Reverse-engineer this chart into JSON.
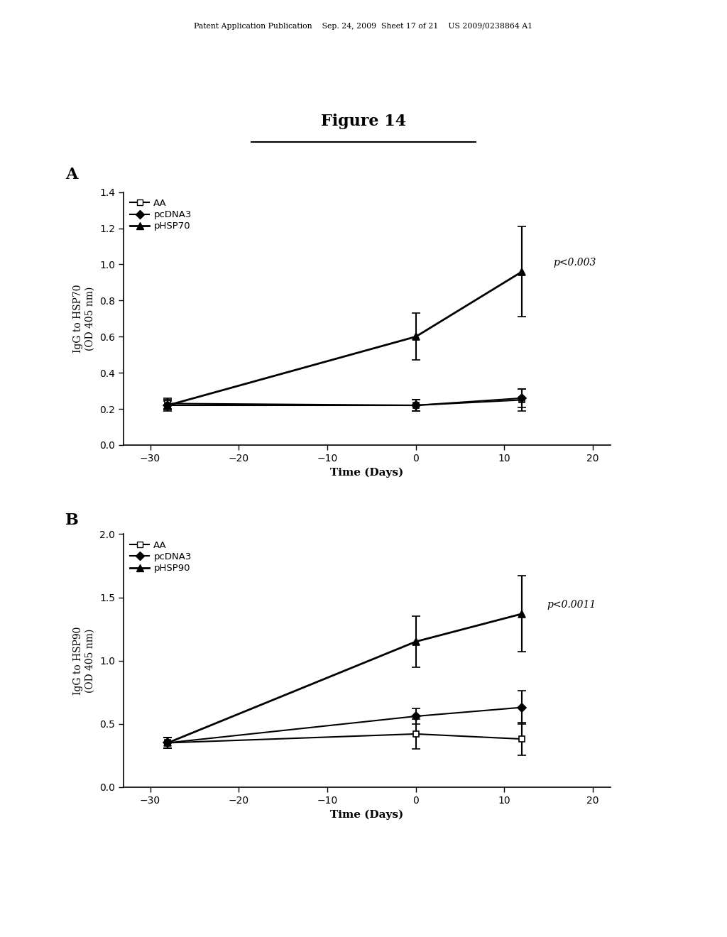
{
  "header_text": "Patent Application Publication    Sep. 24, 2009  Sheet 17 of 21    US 2009/0238864 A1",
  "figure_title": "Figure 14",
  "panel_A": {
    "panel_label": "A",
    "ylabel": "IgG to HSP70\n(OD 405 nm)",
    "xlabel": "Time (Days)",
    "xlim": [
      -33,
      22
    ],
    "ylim": [
      0,
      1.4
    ],
    "yticks": [
      0,
      0.2,
      0.4,
      0.6,
      0.8,
      1.0,
      1.2,
      1.4
    ],
    "xticks": [
      -30,
      -20,
      -10,
      0,
      10,
      20
    ],
    "pvalue": "p<0.003",
    "pvalue_x": 0.97,
    "pvalue_y": 0.72,
    "series": [
      {
        "label": "AA",
        "x": [
          -28,
          0,
          12
        ],
        "y": [
          0.23,
          0.22,
          0.25
        ],
        "yerr": [
          0.03,
          0.03,
          0.06
        ],
        "marker": "s",
        "fillstyle": "none",
        "linewidth": 1.5,
        "markersize": 6
      },
      {
        "label": "pcDNA3",
        "x": [
          -28,
          0,
          12
        ],
        "y": [
          0.22,
          0.22,
          0.26
        ],
        "yerr": [
          0.03,
          0.03,
          0.05
        ],
        "marker": "D",
        "fillstyle": "full",
        "linewidth": 1.5,
        "markersize": 6
      },
      {
        "label": "pHSP70",
        "x": [
          -28,
          0,
          12
        ],
        "y": [
          0.22,
          0.6,
          0.96
        ],
        "yerr": [
          0.025,
          0.13,
          0.25
        ],
        "marker": "^",
        "fillstyle": "full",
        "linewidth": 2.0,
        "markersize": 7
      }
    ]
  },
  "panel_B": {
    "panel_label": "B",
    "ylabel": "IgG to HSP90\n(OD 405 nm)",
    "xlabel": "Time (Days)",
    "xlim": [
      -33,
      22
    ],
    "ylim": [
      0,
      2.0
    ],
    "yticks": [
      0,
      0.5,
      1.0,
      1.5,
      2.0
    ],
    "xticks": [
      -30,
      -20,
      -10,
      0,
      10,
      20
    ],
    "pvalue": "p<0.0011",
    "pvalue_x": 0.97,
    "pvalue_y": 0.72,
    "series": [
      {
        "label": "AA",
        "x": [
          -28,
          0,
          12
        ],
        "y": [
          0.35,
          0.42,
          0.38
        ],
        "yerr": [
          0.04,
          0.12,
          0.13
        ],
        "marker": "s",
        "fillstyle": "none",
        "linewidth": 1.5,
        "markersize": 6
      },
      {
        "label": "pcDNA3",
        "x": [
          -28,
          0,
          12
        ],
        "y": [
          0.35,
          0.56,
          0.63
        ],
        "yerr": [
          0.04,
          0.06,
          0.13
        ],
        "marker": "D",
        "fillstyle": "full",
        "linewidth": 1.5,
        "markersize": 6
      },
      {
        "label": "pHSP90",
        "x": [
          -28,
          0,
          12
        ],
        "y": [
          0.35,
          1.15,
          1.37
        ],
        "yerr": [
          0.04,
          0.2,
          0.3
        ],
        "marker": "^",
        "fillstyle": "full",
        "linewidth": 2.0,
        "markersize": 7
      }
    ]
  }
}
